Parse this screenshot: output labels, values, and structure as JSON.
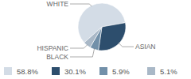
{
  "chart_data": {
    "type": "pie",
    "categories": [
      "WHITE",
      "ASIAN",
      "BLACK",
      "HISPANIC"
    ],
    "values": [
      58.8,
      30.1,
      5.9,
      5.1
    ],
    "value_labels": [
      "58.8%",
      "30.1%",
      "5.9%",
      "5.1%"
    ],
    "colors": [
      "#d3dce6",
      "#2d4e6d",
      "#7290a9",
      "#a9b8c7"
    ],
    "legend": "bottom"
  }
}
